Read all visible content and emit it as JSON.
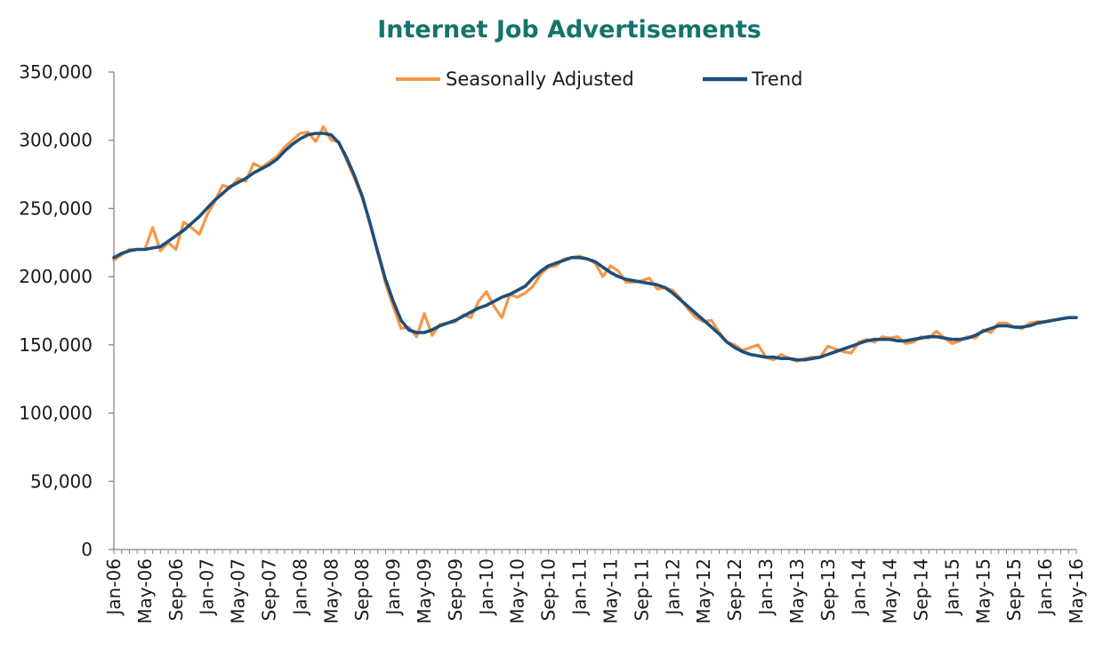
{
  "chart_data": {
    "type": "line",
    "title": "Internet Job Advertisements",
    "xlabel": "",
    "ylabel": "",
    "ylim": [
      0,
      350000
    ],
    "yticks": [
      "0",
      "50,000",
      "100,000",
      "150,000",
      "200,000",
      "250,000",
      "300,000",
      "350,000"
    ],
    "xtick_labels": [
      "Jan-06",
      "May-06",
      "Sep-06",
      "Jan-07",
      "May-07",
      "Sep-07",
      "Jan-08",
      "May-08",
      "Sep-08",
      "Jan-09",
      "May-09",
      "Sep-09",
      "Jan-10",
      "May-10",
      "Sep-10",
      "Jan-11",
      "May-11",
      "Sep-11",
      "Jan-12",
      "May-12",
      "Sep-12",
      "Jan-13",
      "May-13",
      "Sep-13",
      "Jan-14",
      "May-14",
      "Sep-14",
      "Jan-15",
      "May-15",
      "Sep-15",
      "Jan-16",
      "May-16"
    ],
    "x_start": "Jan-06",
    "x_end": "May-16",
    "frequency": "monthly",
    "grid": false,
    "legend_position": "top",
    "series": [
      {
        "name": "Seasonally Adjusted",
        "color": "#f79646",
        "values": [
          212000,
          216000,
          220000,
          220000,
          220000,
          236000,
          219000,
          225000,
          220000,
          240000,
          236000,
          231000,
          245000,
          255000,
          267000,
          265000,
          272000,
          270000,
          283000,
          280000,
          284000,
          288000,
          295000,
          300000,
          305000,
          306000,
          299000,
          310000,
          300000,
          299000,
          285000,
          272000,
          258000,
          240000,
          218000,
          195000,
          178000,
          162000,
          163000,
          156000,
          173000,
          157000,
          165000,
          166000,
          167000,
          172000,
          170000,
          182000,
          189000,
          178000,
          170000,
          187000,
          185000,
          188000,
          193000,
          202000,
          207000,
          208000,
          213000,
          214000,
          215000,
          213000,
          210000,
          200000,
          208000,
          204000,
          196000,
          196000,
          197000,
          199000,
          191000,
          192000,
          190000,
          184000,
          176000,
          170000,
          167000,
          168000,
          159000,
          152000,
          150000,
          146000,
          148000,
          150000,
          141000,
          139000,
          143000,
          140000,
          138000,
          140000,
          141000,
          141000,
          149000,
          147000,
          145000,
          144000,
          152000,
          154000,
          152000,
          156000,
          155000,
          156000,
          151000,
          152000,
          156000,
          155000,
          160000,
          155000,
          151000,
          153000,
          156000,
          155000,
          161000,
          159000,
          166000,
          166000,
          163000,
          162000,
          166000,
          167000,
          167000,
          168000,
          169000,
          170000,
          170000
        ]
      },
      {
        "name": "Trend",
        "color": "#1f4e79",
        "values": [
          214000,
          217000,
          219000,
          220000,
          220000,
          221000,
          222000,
          226000,
          230000,
          234000,
          239000,
          244000,
          250000,
          256000,
          261000,
          266000,
          269000,
          272000,
          276000,
          279000,
          282000,
          286000,
          292000,
          297000,
          301000,
          304000,
          305000,
          305000,
          304000,
          298000,
          287000,
          274000,
          259000,
          239000,
          218000,
          198000,
          182000,
          168000,
          161000,
          159000,
          159000,
          161000,
          164000,
          166000,
          168000,
          171000,
          174000,
          177000,
          179000,
          182000,
          185000,
          187000,
          190000,
          193000,
          199000,
          204000,
          208000,
          210000,
          212000,
          214000,
          214000,
          213000,
          211000,
          207000,
          203000,
          200000,
          198000,
          197000,
          196000,
          195000,
          194000,
          192000,
          188000,
          183000,
          178000,
          173000,
          168000,
          163000,
          158000,
          152000,
          148000,
          145000,
          143000,
          142000,
          141000,
          141000,
          140000,
          140000,
          139000,
          139000,
          140000,
          141000,
          143000,
          145000,
          147000,
          149000,
          151000,
          153000,
          154000,
          154000,
          154000,
          153000,
          153000,
          154000,
          155000,
          156000,
          156000,
          155000,
          154000,
          154000,
          155000,
          157000,
          160000,
          162000,
          164000,
          164000,
          163000,
          163000,
          164000,
          166000,
          167000,
          168000,
          169000,
          170000,
          170000
        ]
      }
    ]
  }
}
